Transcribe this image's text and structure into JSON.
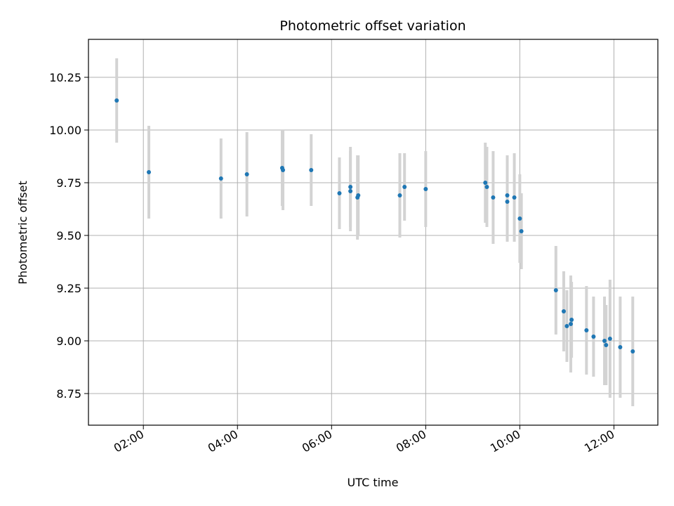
{
  "chart_data": {
    "type": "scatter",
    "title": "Photometric offset variation",
    "xlabel": "UTC time",
    "ylabel": "Photometric offset",
    "x_unit": "UTC time (HH:MM)",
    "xlim": [
      "00:50",
      "12:56"
    ],
    "ylim": [
      8.6,
      10.43
    ],
    "grid": true,
    "colors": {
      "marker": "#1f77b4",
      "errorbar": "#d3d3d3",
      "grid": "#b0b0b0"
    },
    "x_ticks": [
      "02:00",
      "04:00",
      "06:00",
      "08:00",
      "10:00",
      "12:00"
    ],
    "y_ticks": [
      "8.75",
      "9.00",
      "9.25",
      "9.50",
      "9.75",
      "10.00",
      "10.25"
    ],
    "points": [
      {
        "x": "01:26",
        "y": 10.14,
        "err": 0.2
      },
      {
        "x": "02:07",
        "y": 9.8,
        "err": 0.22
      },
      {
        "x": "03:39",
        "y": 9.77,
        "err": 0.19
      },
      {
        "x": "04:12",
        "y": 9.79,
        "err": 0.2
      },
      {
        "x": "04:57",
        "y": 9.82,
        "err": 0.18
      },
      {
        "x": "04:58",
        "y": 9.81,
        "err": 0.19
      },
      {
        "x": "05:34",
        "y": 9.81,
        "err": 0.17
      },
      {
        "x": "06:10",
        "y": 9.7,
        "err": 0.17
      },
      {
        "x": "06:24",
        "y": 9.73,
        "err": 0.19
      },
      {
        "x": "06:24",
        "y": 9.71,
        "err": 0.19
      },
      {
        "x": "06:33",
        "y": 9.68,
        "err": 0.2
      },
      {
        "x": "06:34",
        "y": 9.69,
        "err": 0.19
      },
      {
        "x": "07:27",
        "y": 9.69,
        "err": 0.2
      },
      {
        "x": "07:33",
        "y": 9.73,
        "err": 0.16
      },
      {
        "x": "08:00",
        "y": 9.72,
        "err": 0.18
      },
      {
        "x": "09:16",
        "y": 9.75,
        "err": 0.19
      },
      {
        "x": "09:18",
        "y": 9.73,
        "err": 0.19
      },
      {
        "x": "09:26",
        "y": 9.68,
        "err": 0.22
      },
      {
        "x": "09:44",
        "y": 9.69,
        "err": 0.19
      },
      {
        "x": "09:44",
        "y": 9.66,
        "err": 0.19
      },
      {
        "x": "09:53",
        "y": 9.68,
        "err": 0.21
      },
      {
        "x": "10:00",
        "y": 9.58,
        "err": 0.21
      },
      {
        "x": "10:02",
        "y": 9.52,
        "err": 0.18
      },
      {
        "x": "10:46",
        "y": 9.24,
        "err": 0.21
      },
      {
        "x": "10:56",
        "y": 9.14,
        "err": 0.19
      },
      {
        "x": "11:00",
        "y": 9.07,
        "err": 0.17
      },
      {
        "x": "11:05",
        "y": 9.08,
        "err": 0.23
      },
      {
        "x": "11:06",
        "y": 9.1,
        "err": 0.18
      },
      {
        "x": "11:25",
        "y": 9.05,
        "err": 0.21
      },
      {
        "x": "11:34",
        "y": 9.02,
        "err": 0.19
      },
      {
        "x": "11:48",
        "y": 9.0,
        "err": 0.21
      },
      {
        "x": "11:50",
        "y": 8.98,
        "err": 0.19
      },
      {
        "x": "11:55",
        "y": 9.01,
        "err": 0.28
      },
      {
        "x": "12:08",
        "y": 8.97,
        "err": 0.24
      },
      {
        "x": "12:24",
        "y": 8.95,
        "err": 0.26
      }
    ]
  }
}
